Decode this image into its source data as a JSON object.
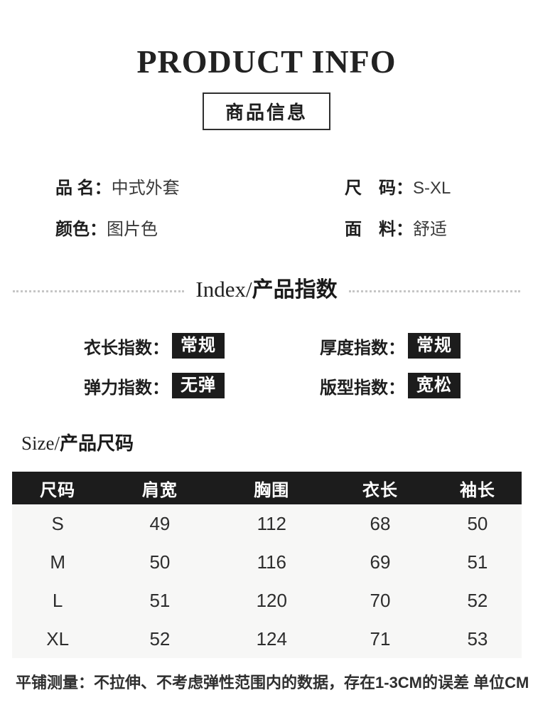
{
  "header": {
    "title": "PRODUCT INFO",
    "subtitle": "商品信息"
  },
  "product_details": {
    "items": [
      {
        "label": "品 名：",
        "value": "中式外套"
      },
      {
        "label": "尺　码：",
        "value": "S-XL"
      },
      {
        "label": "颜色：",
        "value": "图片色"
      },
      {
        "label": "面　料：",
        "value": "舒适"
      }
    ]
  },
  "index_section": {
    "title_en": "Index/",
    "title_zh": "产品指数",
    "items": [
      {
        "label": "衣长指数：",
        "value": "常规"
      },
      {
        "label": "厚度指数：",
        "value": "常规"
      },
      {
        "label": "弹力指数：",
        "value": "无弹"
      },
      {
        "label": "版型指数：",
        "value": "宽松"
      }
    ]
  },
  "size_section": {
    "title_en": "Size/",
    "title_zh": "产品尺码",
    "table": {
      "headers": [
        "尺码",
        "肩宽",
        "胸围",
        "衣长",
        "袖长"
      ],
      "rows": [
        [
          "S",
          "49",
          "112",
          "68",
          "50"
        ],
        [
          "M",
          "50",
          "116",
          "69",
          "51"
        ],
        [
          "L",
          "51",
          "120",
          "70",
          "52"
        ],
        [
          "XL",
          "52",
          "124",
          "71",
          "53"
        ]
      ]
    }
  },
  "footnote": "平铺测量：不拉伸、不考虑弹性范围内的数据，存在1-3CM的误差 单位CM",
  "colors": {
    "badge_bg": "#1c1c1c",
    "table_header_bg": "#1c1c1c",
    "table_body_bg": "#f7f7f6",
    "text": "#2b2b2b"
  }
}
